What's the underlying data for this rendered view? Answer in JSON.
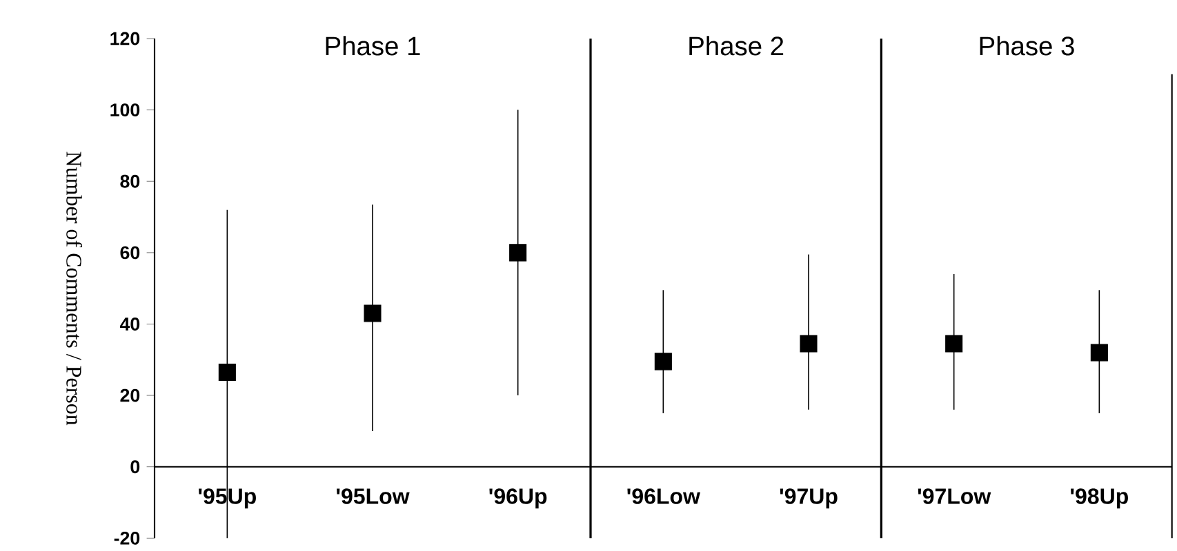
{
  "chart_data": {
    "type": "scatter",
    "ylabel": "Number of Comments / Person",
    "categories": [
      "'95Up",
      "'95Low",
      "'96Up",
      "'96Low",
      "'97Up",
      "'97Low",
      "'98Up"
    ],
    "series": [
      {
        "color": "#000000",
        "values": [
          26.5,
          43,
          60,
          29.5,
          34.5,
          34.5,
          32
        ],
        "errors": [
          [
            -20,
            72
          ],
          [
            10,
            73.5
          ],
          [
            20,
            100
          ],
          [
            15,
            49.5
          ],
          [
            16,
            59.5
          ],
          [
            16,
            54
          ],
          [
            15,
            49.5
          ]
        ]
      }
    ],
    "ylim": [
      -20,
      120
    ],
    "yticks": [
      -20,
      0,
      20,
      40,
      60,
      80,
      100,
      120
    ],
    "marker": "square",
    "line_style": "none",
    "annotations": [
      "Phase 1",
      "Phase 2",
      "Phase 3"
    ]
  }
}
